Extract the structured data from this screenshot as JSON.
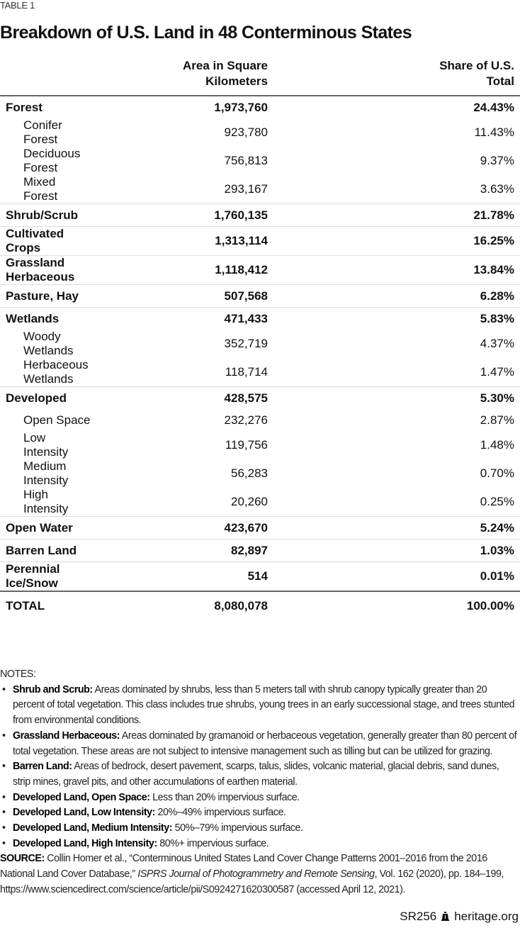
{
  "label": "TABLE 1",
  "title": "Breakdown of U.S. Land in 48 Conterminous States",
  "columns": [
    "",
    "Area in Square Kilometers",
    "Share of U.S. Total"
  ],
  "rows": [
    {
      "name": "Forest",
      "area": "1,973,760",
      "share": "24.43%",
      "level": "main"
    },
    {
      "name": "Conifer Forest",
      "area": "923,780",
      "share": "11.43%",
      "level": "sub"
    },
    {
      "name": "Deciduous Forest",
      "area": "756,813",
      "share": "9.37%",
      "level": "sub"
    },
    {
      "name": "Mixed Forest",
      "area": "293,167",
      "share": "3.63%",
      "level": "sub"
    },
    {
      "name": "Shrub/Scrub",
      "area": "1,760,135",
      "share": "21.78%",
      "level": "main"
    },
    {
      "name": "Cultivated Crops",
      "area": "1,313,114",
      "share": "16.25%",
      "level": "main"
    },
    {
      "name": "Grassland Herbaceous",
      "area": "1,118,412",
      "share": "13.84%",
      "level": "main"
    },
    {
      "name": "Pasture, Hay",
      "area": "507,568",
      "share": "6.28%",
      "level": "main"
    },
    {
      "name": "Wetlands",
      "area": "471,433",
      "share": "5.83%",
      "level": "main"
    },
    {
      "name": "Woody Wetlands",
      "area": "352,719",
      "share": "4.37%",
      "level": "sub"
    },
    {
      "name": "Herbaceous Wetlands",
      "area": "118,714",
      "share": "1.47%",
      "level": "sub"
    },
    {
      "name": "Developed",
      "area": "428,575",
      "share": "5.30%",
      "level": "main"
    },
    {
      "name": "Open Space",
      "area": "232,276",
      "share": "2.87%",
      "level": "sub"
    },
    {
      "name": "Low Intensity",
      "area": "119,756",
      "share": "1.48%",
      "level": "sub"
    },
    {
      "name": "Medium Intensity",
      "area": "56,283",
      "share": "0.70%",
      "level": "sub"
    },
    {
      "name": "High Intensity",
      "area": "20,260",
      "share": "0.25%",
      "level": "sub"
    },
    {
      "name": "Open Water",
      "area": "423,670",
      "share": "5.24%",
      "level": "main"
    },
    {
      "name": "Barren Land",
      "area": "82,897",
      "share": "1.03%",
      "level": "main"
    },
    {
      "name": "Perennial Ice/Snow",
      "area": "514",
      "share": "0.01%",
      "level": "main"
    }
  ],
  "total": {
    "name": "TOTAL",
    "area": "8,080,078",
    "share": "100.00%"
  },
  "notes": {
    "heading": "NOTES:",
    "items": [
      {
        "term": "Shrub and Scrub:",
        "text": " Areas dominated by shrubs, less than 5 meters tall with shrub canopy typically greater than 20 percent of total vegetation. This class includes true shrubs, young trees in an early successional stage, and trees stunted from environmental conditions."
      },
      {
        "term": "Grassland Herbaceous:",
        "text": " Areas dominated by gramanoid or herbaceous vegetation, generally greater than 80 percent of total vegetation. These areas are not subject to intensive management such as tilling but can be utilized for grazing."
      },
      {
        "term": "Barren Land:",
        "text": " Areas of bedrock, desert pavement, scarps, talus, slides, volcanic material, glacial debris, sand dunes, strip mines, gravel pits, and other accumulations of earthen material."
      },
      {
        "term": "Developed Land, Open Space:",
        "text": " Less than 20% impervious surface."
      },
      {
        "term": "Developed Land, Low Intensity:",
        "text": " 20%–49% impervious surface."
      },
      {
        "term": "Developed Land, Medium Intensity:",
        "text": " 50%–79% impervious surface."
      },
      {
        "term": "Developed Land, High Intensity:",
        "text": " 80%+ impervious surface."
      }
    ],
    "source_label": "SOURCE:",
    "source_pre": " Collin Homer et al., “Conterminous United States Land Cover Change Patterns 2001–2016 from the 2016 National Land Cover Database,” ",
    "source_journal": "ISPRS Journal of Photogrammetry and Remote Sensing",
    "source_post": ", Vol. 162 (2020), pp. 184–199, https://www.sciencedirect.com/science/article/pii/S0924271620300587 (accessed April 12, 2021)."
  },
  "footer": {
    "report": "SR256",
    "site": "heritage.org"
  }
}
